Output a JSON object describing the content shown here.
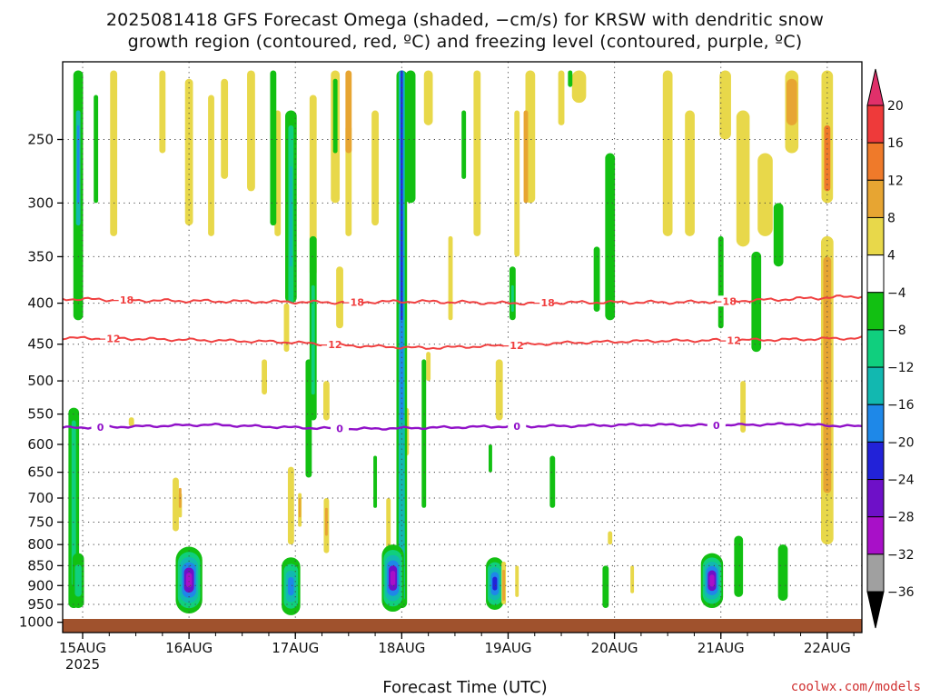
{
  "title_lines": [
    "2025081418 GFS Forecast Omega (shaded, −cm/s) for KRSW with dendritic snow",
    "growth region (contoured, red, ºC) and freezing level (contoured, purple, ºC)"
  ],
  "credit": "coolwx.com/models",
  "chart_data": {
    "type": "heatmap",
    "title": "2025081418 GFS Forecast Omega (shaded, −cm/s) for KRSW with dendritic snow growth region (contoured, red, ºC) and freezing level (contoured, purple, ºC)",
    "xlabel": "Forecast Time (UTC)",
    "ylabel": "",
    "x_range": [
      "2025-08-14 18Z",
      "2025-08-22 06Z"
    ],
    "x_ticks": [
      "15AUG",
      "16AUG",
      "17AUG",
      "18AUG",
      "19AUG",
      "20AUG",
      "21AUG",
      "22AUG"
    ],
    "x_tick_hours": [
      6,
      30,
      54,
      78,
      102,
      126,
      150,
      174
    ],
    "x_year": "2025",
    "y_scale": "log-pressure (hPa, inverted)",
    "y_range": [
      1030,
      200
    ],
    "y_ticks": [
      250,
      300,
      350,
      400,
      450,
      500,
      550,
      600,
      650,
      700,
      750,
      800,
      850,
      900,
      950,
      1000
    ],
    "grid": true,
    "colorbar": {
      "levels": [
        "20",
        "16",
        "12",
        "8",
        "4",
        "−4",
        "−8",
        "−12",
        "−16",
        "−20",
        "−24",
        "−28",
        "−32",
        "−36"
      ],
      "colors": [
        "#e0306a",
        "#ee3a3a",
        "#ef7a2a",
        "#e7a532",
        "#e8d84a",
        "#ffffff",
        "#12c012",
        "#10cf7e",
        "#12b8b0",
        "#1e88e8",
        "#2222d8",
        "#6e10c8",
        "#a810c8",
        "#a0a0a0",
        "#000000"
      ]
    },
    "contours": [
      {
        "name": "−18",
        "color": "#f04040",
        "label_hours": [
          15,
          67,
          110,
          151
        ],
        "pressure": [
          395,
          397,
          398,
          399,
          398,
          400,
          399,
          399,
          396,
          392
        ]
      },
      {
        "name": "−12",
        "color": "#f04040",
        "label_hours": [
          12,
          62,
          103,
          152
        ],
        "pressure": [
          442,
          443,
          445,
          447,
          452,
          455,
          452,
          448,
          446,
          445,
          444,
          442
        ]
      },
      {
        "name": "0",
        "color": "#9010c8",
        "label_hours": [
          10,
          64,
          104,
          149
        ],
        "pressure": [
          572,
          570,
          567,
          571,
          574,
          572,
          570,
          569,
          567,
          568,
          566,
          570
        ]
      }
    ],
    "omega_features": [
      {
        "hour": 30,
        "p_top": 805,
        "p_bot": 975,
        "category": "−32",
        "note": "max near 920 hPa"
      },
      {
        "hour": 53,
        "p_top": 830,
        "p_bot": 980,
        "category": "−16"
      },
      {
        "hour": 76,
        "p_top": 810,
        "p_bot": 970,
        "category": "−32"
      },
      {
        "hour": 78,
        "p_top": 205,
        "p_bot": 960,
        "category": "−20"
      },
      {
        "hour": 99,
        "p_top": 830,
        "p_bot": 965,
        "category": "−24"
      },
      {
        "hour": 148,
        "p_top": 820,
        "p_bot": 960,
        "category": "−32"
      },
      {
        "hour": 5,
        "p_top": 210,
        "p_bot": 400,
        "category": "−16"
      },
      {
        "hour": 174,
        "p_top": 340,
        "p_bot": 800,
        "category": "12"
      },
      {
        "hour": 165,
        "p_top": 210,
        "p_bot": 240,
        "category": "16"
      }
    ]
  }
}
